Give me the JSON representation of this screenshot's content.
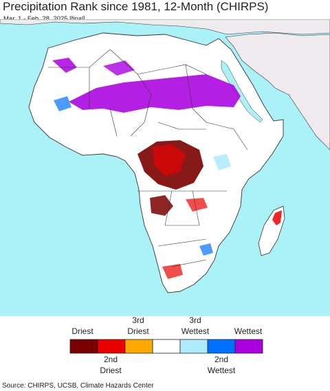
{
  "title": "Precipitation Rank since 1981, 12-Month (CHIRPS)",
  "subtitle": "Mar. 1 - Feb. 28, 2025 [final]",
  "source": "Source: CHIRPS, UCSB, Climate Hazards Center",
  "colors": {
    "ocean": "#aaf2f8",
    "land": "#ffffff",
    "non_africa_land": "#eeeaee",
    "border": "#333333"
  },
  "legend": {
    "top_labels": [
      "Driest",
      "3rd\nDriest",
      "3rd\nWettest",
      "Wettest"
    ],
    "bottom_labels": [
      "2nd\nDriest",
      "2nd\nWettest"
    ],
    "swatches": [
      {
        "name": "driest",
        "color": "#7a0000"
      },
      {
        "name": "2nd-driest",
        "color": "#ee0000"
      },
      {
        "name": "3rd-driest",
        "color": "#ffaa00"
      },
      {
        "name": "normal",
        "color": "#ffffff"
      },
      {
        "name": "3rd-wettest",
        "color": "#b0eaff"
      },
      {
        "name": "2nd-wettest",
        "color": "#0070ff"
      },
      {
        "name": "wettest",
        "color": "#aa00e0"
      }
    ]
  }
}
